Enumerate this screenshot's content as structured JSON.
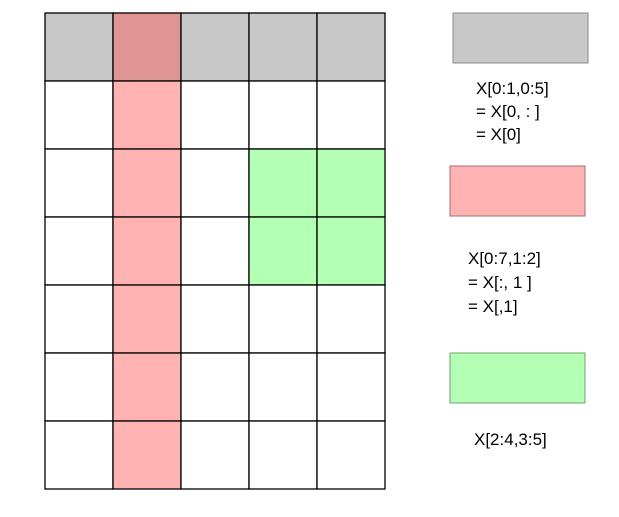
{
  "grid": {
    "rows": 7,
    "cols": 5,
    "grid_color": "#000000",
    "cell_fill": "#ffffff"
  },
  "highlights": {
    "row0": {
      "rows": [
        0
      ],
      "cols": [
        0,
        1,
        2,
        3,
        4
      ],
      "color": "#c8c8c8"
    },
    "col1": {
      "rows": [
        0,
        1,
        2,
        3,
        4,
        5,
        6
      ],
      "cols": [
        1
      ],
      "color": "#ffb3b3",
      "overlap_color": "#e09595"
    },
    "block": {
      "rows": [
        2,
        3
      ],
      "cols": [
        3,
        4
      ],
      "color": "#b3ffb3"
    }
  },
  "legend": [
    {
      "name": "row-slice",
      "swatch_color": "#c8c8c8",
      "swatch_border": "#8a8a8a",
      "lines": [
        "X[0:1,0:5]",
        "= X[0, : ]",
        "= X[0]"
      ]
    },
    {
      "name": "column-slice",
      "swatch_color": "#ffb3b3",
      "swatch_border": "#a07070",
      "lines": [
        "X[0:7,1:2]",
        "= X[:, 1 ]",
        "= X[,1]"
      ]
    },
    {
      "name": "block-slice",
      "swatch_color": "#b3ffb3",
      "swatch_border": "#70a070",
      "lines": [
        "X[2:4,3:5]"
      ]
    }
  ]
}
